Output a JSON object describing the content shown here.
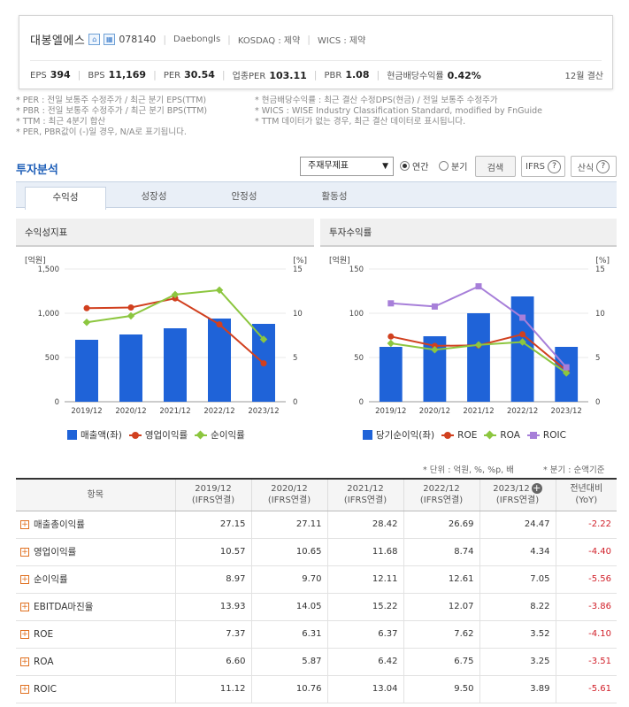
{
  "header": {
    "company_name": "대봉엘에스",
    "code": "078140",
    "english_name": "Daebongls",
    "market": "KOSDAQ : 제약",
    "wics": "WICS : 제약",
    "metrics": [
      {
        "key": "EPS",
        "value": "394"
      },
      {
        "key": "BPS",
        "value": "11,169"
      },
      {
        "key": "PER",
        "value": "30.54"
      },
      {
        "key": "업종PER",
        "value": "103.11"
      },
      {
        "key": "PBR",
        "value": "1.08"
      },
      {
        "key": "현금배당수익률",
        "value": "0.42%"
      }
    ],
    "settlement": "12월 결산"
  },
  "notes": {
    "left": [
      "* PER : 전일 보통주 수정주가 / 최근 분기 EPS(TTM)",
      "* PBR : 전일 보통주 수정주가 / 최근 분기 BPS(TTM)",
      "* TTM : 최근 4분기 합산",
      "* PER, PBR값이 (-)일 경우, N/A로 표기됩니다."
    ],
    "right": [
      "* 현금배당수익률 : 최근 결산 수정DPS(현금) / 전일 보통주 수정주가",
      "* WICS : WISE Industry Classification Standard, modified by FnGuide",
      "* TTM 데이터가 없는 경우, 최근 결산 데이터로 표시됩니다."
    ]
  },
  "analysis": {
    "title": "투자분석",
    "select_value": "주재무제표",
    "radio_annual": "연간",
    "radio_quarter": "분기",
    "search_btn": "검색",
    "ifrs_btn": "IFRS",
    "formula_btn": "산식",
    "tabs": [
      "수익성",
      "성장성",
      "안정성",
      "활동성"
    ]
  },
  "colors": {
    "bar": "#1f63d8",
    "op_profit": "#d1401f",
    "net_profit": "#8cc63f",
    "roic": "#a77fd9"
  },
  "chart_data": [
    {
      "type": "bar",
      "title": "수익성지표",
      "categories": [
        "2019/12",
        "2020/12",
        "2021/12",
        "2022/12",
        "2023/12"
      ],
      "y_left_label": "[억원]",
      "y_right_label": "[%]",
      "y_left_ticks": [
        "0",
        "500",
        "1,000",
        "1,500"
      ],
      "y_right_ticks": [
        "0",
        "5",
        "10",
        "15"
      ],
      "y_left_lim": [
        0,
        1500
      ],
      "y_right_lim": [
        0,
        15
      ],
      "series": [
        {
          "name": "매출액(좌)",
          "type": "bar",
          "axis": "left",
          "values": [
            700,
            760,
            830,
            940,
            880
          ]
        },
        {
          "name": "영업이익률",
          "type": "line",
          "axis": "right",
          "values": [
            10.57,
            10.65,
            11.68,
            8.74,
            4.34
          ]
        },
        {
          "name": "순이익률",
          "type": "line",
          "axis": "right",
          "values": [
            8.97,
            9.7,
            12.11,
            12.61,
            7.05
          ]
        }
      ]
    },
    {
      "type": "bar",
      "title": "투자수익률",
      "categories": [
        "2019/12",
        "2020/12",
        "2021/12",
        "2022/12",
        "2023/12"
      ],
      "y_left_label": "[억원]",
      "y_right_label": "[%]",
      "y_left_ticks": [
        "0",
        "50",
        "100",
        "150"
      ],
      "y_right_ticks": [
        "0",
        "5",
        "10",
        "15"
      ],
      "y_left_lim": [
        0,
        150
      ],
      "y_right_lim": [
        0,
        15
      ],
      "series": [
        {
          "name": "당기순이익(좌)",
          "type": "bar",
          "axis": "left",
          "values": [
            62,
            74,
            100,
            119,
            62
          ]
        },
        {
          "name": "ROE",
          "type": "line",
          "axis": "right",
          "values": [
            7.37,
            6.31,
            6.37,
            7.62,
            3.52
          ]
        },
        {
          "name": "ROA",
          "type": "line",
          "axis": "right",
          "values": [
            6.6,
            5.87,
            6.42,
            6.75,
            3.25
          ]
        },
        {
          "name": "ROIC",
          "type": "line",
          "axis": "right",
          "values": [
            11.12,
            10.76,
            13.04,
            9.5,
            3.89
          ]
        }
      ]
    }
  ],
  "unit_note": "* 단위 : 억원, %, %p, 배",
  "period_note": "* 분기 : 순액기준",
  "table": {
    "headers": [
      "항목",
      "2019/12|(IFRS연결)",
      "2020/12|(IFRS연결)",
      "2021/12|(IFRS연결)",
      "2022/12|(IFRS연결)",
      "2023/12|(IFRS연결)",
      "전년대비|(YoY)"
    ],
    "rows": [
      {
        "label": "매출총이익률",
        "values": [
          "27.15",
          "27.11",
          "28.42",
          "26.69",
          "24.47"
        ],
        "yoy": "-2.22"
      },
      {
        "label": "영업이익률",
        "values": [
          "10.57",
          "10.65",
          "11.68",
          "8.74",
          "4.34"
        ],
        "yoy": "-4.40"
      },
      {
        "label": "순이익률",
        "values": [
          "8.97",
          "9.70",
          "12.11",
          "12.61",
          "7.05"
        ],
        "yoy": "-5.56"
      },
      {
        "label": "EBITDA마진율",
        "values": [
          "13.93",
          "14.05",
          "15.22",
          "12.07",
          "8.22"
        ],
        "yoy": "-3.86"
      },
      {
        "label": "ROE",
        "values": [
          "7.37",
          "6.31",
          "6.37",
          "7.62",
          "3.52"
        ],
        "yoy": "-4.10"
      },
      {
        "label": "ROA",
        "values": [
          "6.60",
          "5.87",
          "6.42",
          "6.75",
          "3.25"
        ],
        "yoy": "-3.51"
      },
      {
        "label": "ROIC",
        "values": [
          "11.12",
          "10.76",
          "13.04",
          "9.50",
          "3.89"
        ],
        "yoy": "-5.61"
      }
    ]
  }
}
